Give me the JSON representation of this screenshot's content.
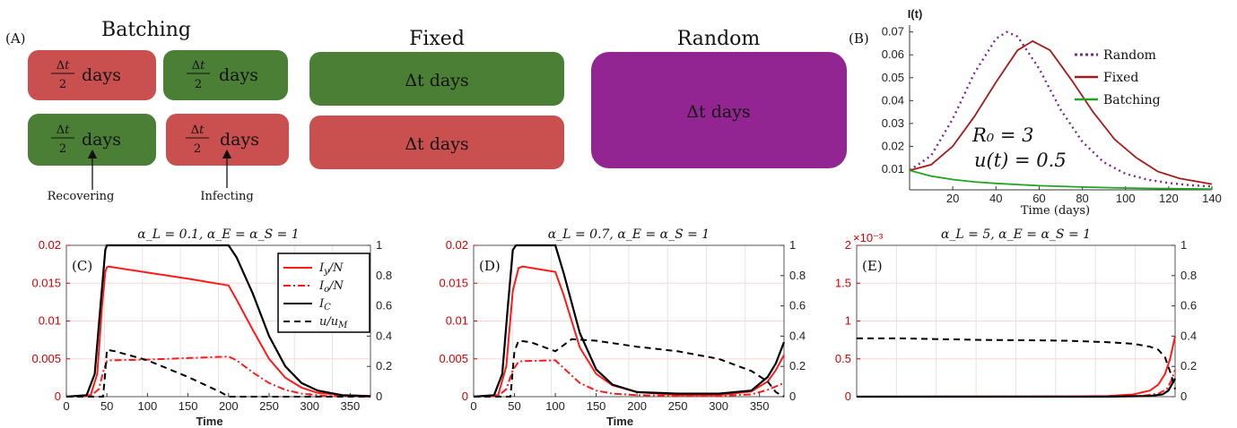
{
  "panel_a": {
    "label": "(A)",
    "groups": {
      "batching": "Batching",
      "fixed": "Fixed",
      "random": "Random"
    },
    "half_label": "Δt/2 days",
    "full_label": "Δt days",
    "arrows": {
      "recovering": "Recovering",
      "infecting": "Infecting"
    },
    "colors": {
      "red": "#c9504f",
      "green": "#4b7f36",
      "purple": "#922591"
    }
  },
  "chart_data": [
    {
      "id": "B",
      "type": "line",
      "panel_label": "(B)",
      "ylabel": "I(t)",
      "xlabel": "Time (days)",
      "xlim": [
        0,
        140
      ],
      "ylim": [
        0.001,
        0.073
      ],
      "xticks": [
        20,
        40,
        60,
        80,
        100,
        120,
        140
      ],
      "yticks": [
        0.01,
        0.02,
        0.03,
        0.04,
        0.05,
        0.06,
        0.07
      ],
      "ytick_labels": [
        "0.01",
        "0.02",
        "0.03",
        "0.04",
        "0.05",
        "0.06",
        "0.07"
      ],
      "annotations": [
        "R₀ = 3",
        "u(t) = 0.5"
      ],
      "legend_position": "top-right",
      "series": [
        {
          "name": "Random",
          "color": "#7a2a8c",
          "dash": "dot",
          "x": [
            0,
            10,
            20,
            30,
            40,
            45,
            50,
            60,
            70,
            80,
            90,
            100,
            110,
            120,
            130,
            140
          ],
          "y": [
            0.0095,
            0.016,
            0.032,
            0.052,
            0.067,
            0.07,
            0.068,
            0.054,
            0.036,
            0.022,
            0.013,
            0.008,
            0.0055,
            0.004,
            0.003,
            0.0025
          ]
        },
        {
          "name": "Fixed",
          "color": "#a31b1b",
          "dash": "solid",
          "x": [
            0,
            10,
            20,
            30,
            40,
            50,
            57,
            65,
            75,
            85,
            95,
            105,
            115,
            125,
            140
          ],
          "y": [
            0.0095,
            0.012,
            0.02,
            0.033,
            0.048,
            0.062,
            0.066,
            0.062,
            0.049,
            0.035,
            0.023,
            0.015,
            0.009,
            0.006,
            0.0035
          ]
        },
        {
          "name": "Batching",
          "color": "#22a322",
          "dash": "solid",
          "x": [
            0,
            10,
            20,
            30,
            40,
            60,
            80,
            100,
            120,
            140
          ],
          "y": [
            0.0095,
            0.007,
            0.0055,
            0.0045,
            0.0038,
            0.0028,
            0.0022,
            0.0018,
            0.0015,
            0.0013
          ]
        }
      ]
    },
    {
      "id": "C",
      "type": "line",
      "panel_label": "(C)",
      "title": "α_L = 0.1, α_E = α_S = 1",
      "xlabel": "Time",
      "xlim": [
        0,
        375
      ],
      "ylim_left": [
        0,
        0.02
      ],
      "ylim_right": [
        0,
        1
      ],
      "xticks": [
        0,
        50,
        100,
        150,
        200,
        250,
        300,
        350
      ],
      "yticks_left": [
        "0",
        "0.005",
        "0.01",
        "0.015",
        "0.02"
      ],
      "yticks_right": [
        "0",
        "0.2",
        "0.4",
        "0.6",
        "0.8",
        "1"
      ],
      "legend_position": "top-right",
      "legend": [
        "I_y/N",
        "I_o/N",
        "I_C",
        "u/u_M"
      ],
      "series": [
        {
          "name": "I_y/N",
          "axis": "left",
          "color": "#ff1a1a",
          "dash": "solid",
          "x": [
            0,
            30,
            38,
            44,
            48,
            50,
            52,
            100,
            150,
            200,
            210,
            230,
            250,
            270,
            290,
            310,
            340,
            375
          ],
          "y": [
            0,
            0.0002,
            0.003,
            0.012,
            0.0165,
            0.0171,
            0.0172,
            0.0164,
            0.0156,
            0.0147,
            0.0128,
            0.0088,
            0.005,
            0.0025,
            0.0012,
            0.0005,
            0.0002,
            0.0001
          ]
        },
        {
          "name": "I_o/N",
          "axis": "left",
          "color": "#ff1a1a",
          "dash": "dashdot",
          "x": [
            0,
            30,
            40,
            46,
            50,
            55,
            100,
            150,
            200,
            210,
            230,
            250,
            270,
            290,
            320,
            375
          ],
          "y": [
            0,
            0.0001,
            0.001,
            0.0035,
            0.0047,
            0.0048,
            0.0049,
            0.0051,
            0.0053,
            0.0048,
            0.0032,
            0.0018,
            0.0009,
            0.0004,
            0.0001,
            0
          ]
        },
        {
          "name": "I_C",
          "axis": "right",
          "color": "#000000",
          "dash": "solid",
          "x": [
            0,
            25,
            35,
            42,
            48,
            50,
            200,
            210,
            230,
            250,
            270,
            290,
            310,
            340,
            375
          ],
          "y": [
            0,
            0.01,
            0.15,
            0.6,
            0.97,
            1,
            1,
            0.92,
            0.68,
            0.4,
            0.2,
            0.09,
            0.04,
            0.01,
            0.003
          ]
        },
        {
          "name": "u/u_M",
          "axis": "right",
          "color": "#000000",
          "dash": "dash",
          "x": [
            0,
            45,
            47,
            50,
            60,
            100,
            150,
            190,
            200,
            375
          ],
          "y": [
            0,
            0,
            0.1,
            0.31,
            0.3,
            0.24,
            0.13,
            0.03,
            0,
            0
          ]
        }
      ]
    },
    {
      "id": "D",
      "type": "line",
      "panel_label": "(D)",
      "title": "α_L = 0.7, α_E = α_S = 1",
      "xlabel": "Time",
      "xlim": [
        0,
        380
      ],
      "ylim_left": [
        0,
        0.02
      ],
      "ylim_right": [
        0,
        1
      ],
      "xticks": [
        0,
        50,
        100,
        150,
        200,
        250,
        300,
        350
      ],
      "yticks_left": [
        "0",
        "0.005",
        "0.01",
        "0.015",
        "0.02"
      ],
      "yticks_right": [
        "0",
        "0.2",
        "0.4",
        "0.6",
        "0.8",
        "1"
      ],
      "series": [
        {
          "name": "I_y/N",
          "axis": "left",
          "color": "#ff1a1a",
          "dash": "solid",
          "x": [
            0,
            30,
            40,
            48,
            55,
            60,
            100,
            110,
            130,
            150,
            170,
            200,
            250,
            300,
            340,
            360,
            370,
            380
          ],
          "y": [
            0,
            0.0002,
            0.004,
            0.014,
            0.017,
            0.0172,
            0.0165,
            0.0135,
            0.0065,
            0.003,
            0.0015,
            0.0006,
            0.0002,
            0.0002,
            0.0007,
            0.002,
            0.0035,
            0.0055
          ]
        },
        {
          "name": "I_o/N",
          "axis": "left",
          "color": "#ff1a1a",
          "dash": "dashdot",
          "x": [
            0,
            30,
            40,
            48,
            55,
            60,
            100,
            110,
            130,
            150,
            170,
            200,
            250,
            300,
            340,
            360,
            380
          ],
          "y": [
            0,
            0.0001,
            0.001,
            0.0035,
            0.0046,
            0.0047,
            0.0048,
            0.0038,
            0.0018,
            0.0008,
            0.0004,
            0.0002,
            0.0001,
            0.0001,
            0.0003,
            0.0009,
            0.0018
          ]
        },
        {
          "name": "I_C",
          "axis": "right",
          "color": "#000000",
          "dash": "solid",
          "x": [
            0,
            25,
            35,
            42,
            48,
            52,
            100,
            110,
            130,
            150,
            170,
            200,
            250,
            300,
            340,
            360,
            370,
            380
          ],
          "y": [
            0,
            0.01,
            0.15,
            0.6,
            0.97,
            1,
            1,
            0.82,
            0.42,
            0.18,
            0.08,
            0.03,
            0.02,
            0.02,
            0.04,
            0.13,
            0.22,
            0.36
          ]
        },
        {
          "name": "u/u_M",
          "axis": "right",
          "color": "#000000",
          "dash": "dash",
          "x": [
            0,
            45,
            50,
            55,
            70,
            90,
            100,
            120,
            150,
            200,
            250,
            300,
            340,
            360,
            370,
            380
          ],
          "y": [
            0,
            0,
            0.3,
            0.37,
            0.36,
            0.32,
            0.3,
            0.38,
            0.37,
            0.33,
            0.3,
            0.25,
            0.17,
            0.1,
            0.03,
            0
          ]
        }
      ]
    },
    {
      "id": "E",
      "type": "line",
      "panel_label": "(E)",
      "title": "α_L = 5, α_E = α_S = 1",
      "exponent_label": "×10⁻³",
      "xlim": [
        0,
        380
      ],
      "ylim_left": [
        0,
        0.002
      ],
      "ylim_right": [
        0,
        1
      ],
      "yticks_left": [
        "0",
        "0.5",
        "1",
        "1.5",
        "2"
      ],
      "yticks_right": [
        "0",
        "0.2",
        "0.4",
        "0.6",
        "0.8",
        "1"
      ],
      "series": [
        {
          "name": "I_y/N",
          "axis": "left",
          "color": "#ff1a1a",
          "dash": "solid",
          "x": [
            0,
            200,
            260,
            300,
            330,
            350,
            360,
            368,
            374,
            380
          ],
          "y": [
            0,
            2e-06,
            5e-06,
            1e-05,
            3e-05,
            8e-05,
            0.00016,
            0.0003,
            0.0005,
            0.0008
          ]
        },
        {
          "name": "I_o/N",
          "axis": "left",
          "color": "#ff1a1a",
          "dash": "dashdot",
          "x": [
            0,
            300,
            340,
            360,
            370,
            375,
            380
          ],
          "y": [
            0,
            2e-06,
            1e-05,
            4e-05,
            0.0001,
            0.0002,
            0.00035
          ]
        },
        {
          "name": "I_C",
          "axis": "right",
          "color": "#000000",
          "dash": "solid",
          "x": [
            0,
            300,
            350,
            365,
            372,
            376,
            380
          ],
          "y": [
            0,
            0,
            0.005,
            0.015,
            0.04,
            0.08,
            0.12
          ]
        },
        {
          "name": "u/u_M",
          "axis": "right",
          "color": "#000000",
          "dash": "dash",
          "x": [
            0,
            50,
            100,
            150,
            200,
            250,
            300,
            330,
            350,
            360,
            368,
            375,
            380
          ],
          "y": [
            0.385,
            0.385,
            0.38,
            0.375,
            0.373,
            0.37,
            0.36,
            0.35,
            0.33,
            0.31,
            0.26,
            0.15,
            0.05
          ]
        }
      ]
    }
  ]
}
